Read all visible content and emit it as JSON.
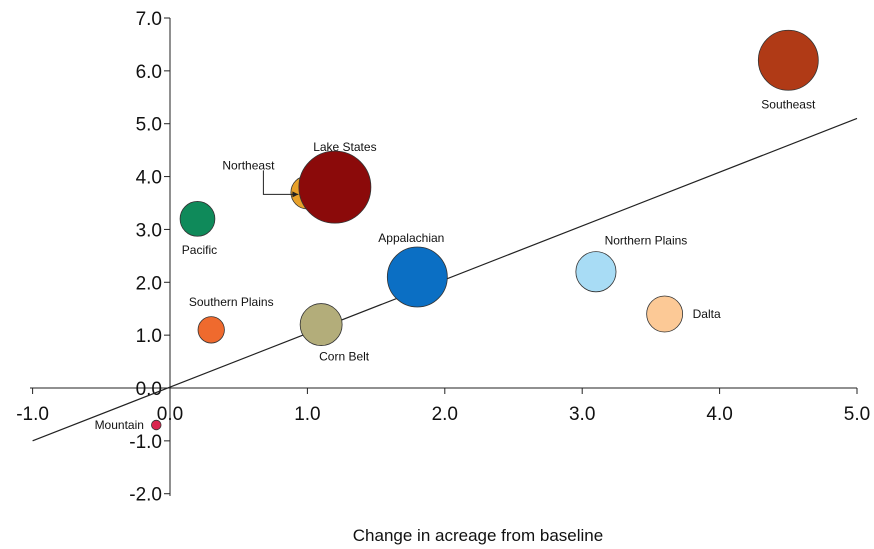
{
  "chart_data": {
    "type": "scatter",
    "title": "",
    "xlabel": "Change in acreage from baseline",
    "ylabel": "",
    "xlim": [
      -1.0,
      5.0
    ],
    "ylim": [
      -2.0,
      7.0
    ],
    "x_ticks": [
      -1.0,
      0.0,
      1.0,
      2.0,
      3.0,
      4.0,
      5.0
    ],
    "x_tick_labels": [
      "-1.0",
      "0.0",
      "1.0",
      "2.0",
      "3.0",
      "4.0",
      "5.0"
    ],
    "y_ticks": [
      -2.0,
      -1.0,
      0.0,
      1.0,
      2.0,
      3.0,
      4.0,
      5.0,
      6.0,
      7.0
    ],
    "y_tick_labels": [
      "-2.0",
      "-1.0",
      "0.0",
      "1.0",
      "2.0",
      "3.0",
      "4.0",
      "5.0",
      "6.0",
      "7.0"
    ],
    "grid": false,
    "points": [
      {
        "name": "Southeast",
        "x": 4.5,
        "y": 6.2,
        "size": 1.0,
        "color": "#b03a16"
      },
      {
        "name": "Lake States",
        "x": 1.2,
        "y": 3.8,
        "size": 1.2,
        "color": "#8b0a0a"
      },
      {
        "name": "Northeast",
        "x": 1.0,
        "y": 3.7,
        "size": 0.55,
        "color": "#e8a12a"
      },
      {
        "name": "Pacific",
        "x": 0.2,
        "y": 3.2,
        "size": 0.58,
        "color": "#0f8a5a"
      },
      {
        "name": "Appalachian",
        "x": 1.8,
        "y": 2.1,
        "size": 1.0,
        "color": "#0b6fc4"
      },
      {
        "name": "Northern Plains",
        "x": 3.1,
        "y": 2.2,
        "size": 0.67,
        "color": "#a8dcf5"
      },
      {
        "name": "Dalta",
        "x": 3.6,
        "y": 1.4,
        "size": 0.6,
        "color": "#fcc996"
      },
      {
        "name": "Southern Plains",
        "x": 0.3,
        "y": 1.1,
        "size": 0.44,
        "color": "#ef6a2e"
      },
      {
        "name": "Corn Belt",
        "x": 1.1,
        "y": 1.2,
        "size": 0.7,
        "color": "#b3ad7a"
      },
      {
        "name": "Mountain",
        "x": -0.1,
        "y": -0.7,
        "size": 0.16,
        "color": "#d9254e"
      }
    ],
    "trend_line": {
      "x": [
        -1.0,
        5.0
      ],
      "y": [
        -1.0,
        5.1
      ]
    }
  }
}
